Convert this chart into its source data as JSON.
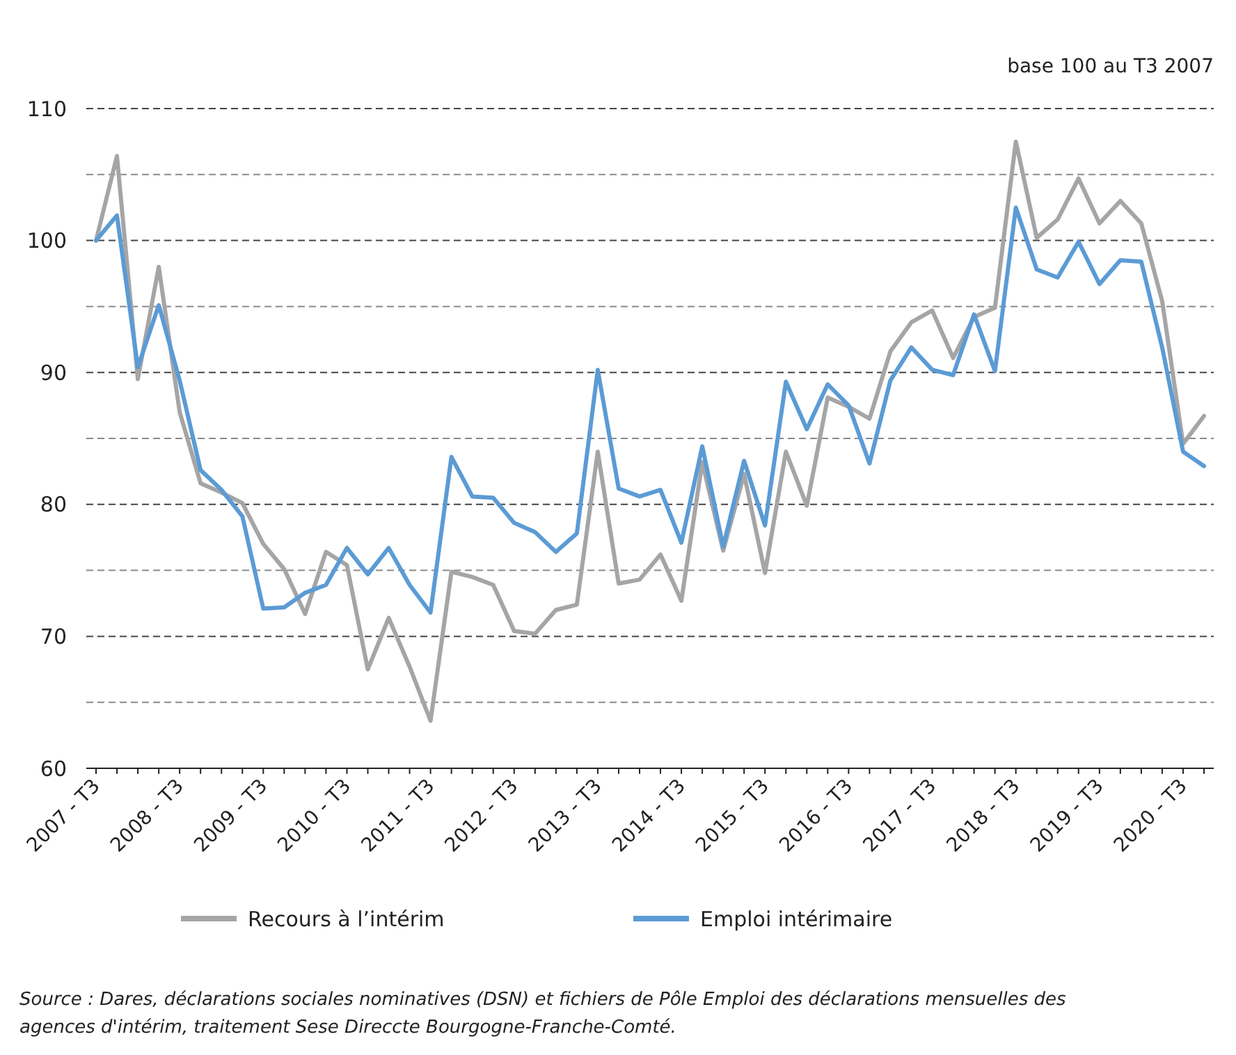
{
  "chart_data": {
    "type": "line",
    "categories": [
      "2007 - T3",
      null,
      null,
      null,
      "2008 - T3",
      null,
      null,
      null,
      "2009 - T3",
      null,
      null,
      null,
      "2010 - T3",
      null,
      null,
      null,
      "2011 - T3",
      null,
      null,
      null,
      "2012 - T3",
      null,
      null,
      null,
      "2013 - T3",
      null,
      null,
      null,
      "2014 - T3",
      null,
      null,
      null,
      "2015 - T3",
      null,
      null,
      null,
      "2016 - T3",
      null,
      null,
      null,
      "2017 - T3",
      null,
      null,
      null,
      "2018 - T3",
      null,
      null,
      null,
      "2019 - T3",
      null,
      null,
      null,
      "2020 - T3",
      null
    ],
    "series": [
      {
        "name": "Recours à l’intérim",
        "color": "#a5a5a5",
        "values": [
          100,
          106.4,
          89.5,
          98.0,
          87.0,
          81.6,
          80.9,
          80.1,
          77.0,
          75.1,
          71.7,
          76.4,
          75.4,
          67.5,
          71.4,
          67.7,
          63.6,
          74.9,
          74.5,
          73.9,
          70.4,
          70.2,
          72.0,
          72.4,
          84.0,
          74.0,
          74.3,
          76.2,
          72.7,
          83.2,
          76.5,
          82.3,
          74.8,
          84.0,
          79.9,
          88.1,
          87.4,
          86.5,
          91.6,
          93.8,
          94.7,
          91.1,
          94.2,
          94.9,
          107.5,
          100.2,
          101.6,
          104.7,
          101.3,
          103.0,
          101.3,
          95.4,
          84.6,
          86.7
        ]
      },
      {
        "name": "Emploi intérimaire",
        "color": "#5b9bd5",
        "values": [
          100,
          101.9,
          90.4,
          95.1,
          89.4,
          82.6,
          81.1,
          79.1,
          72.1,
          72.2,
          73.3,
          73.9,
          76.7,
          74.7,
          76.7,
          73.9,
          71.8,
          83.6,
          80.6,
          80.5,
          78.6,
          77.9,
          76.4,
          77.8,
          90.2,
          81.2,
          80.6,
          81.1,
          77.1,
          84.4,
          76.8,
          83.3,
          78.4,
          89.3,
          85.7,
          89.1,
          87.5,
          83.1,
          89.4,
          91.9,
          90.2,
          89.8,
          94.4,
          90.1,
          102.5,
          97.8,
          97.2,
          99.9,
          96.7,
          98.5,
          98.4,
          91.9,
          84.0,
          82.9
        ]
      }
    ],
    "ylim": [
      60,
      110
    ],
    "yticks": [
      60,
      {
        "value": 65,
        "label": null
      },
      70,
      {
        "value": 75,
        "label": null
      },
      80,
      {
        "value": 85,
        "label": null
      },
      90,
      {
        "value": 95,
        "label": null
      },
      100,
      {
        "value": 105,
        "label": null
      },
      110
    ],
    "grid": "y",
    "legend": "bottom",
    "marker": "none",
    "line_style": "solid",
    "annotations": [
      "base 100 au T3 2007",
      "Source : Dares, déclarations sociales nominatives (DSN) et fichiers de Pôle Emploi des déclarations mensuelles des agences d'intérim, traitement Sese Direccte Bourgogne-Franche-Comté."
    ]
  }
}
